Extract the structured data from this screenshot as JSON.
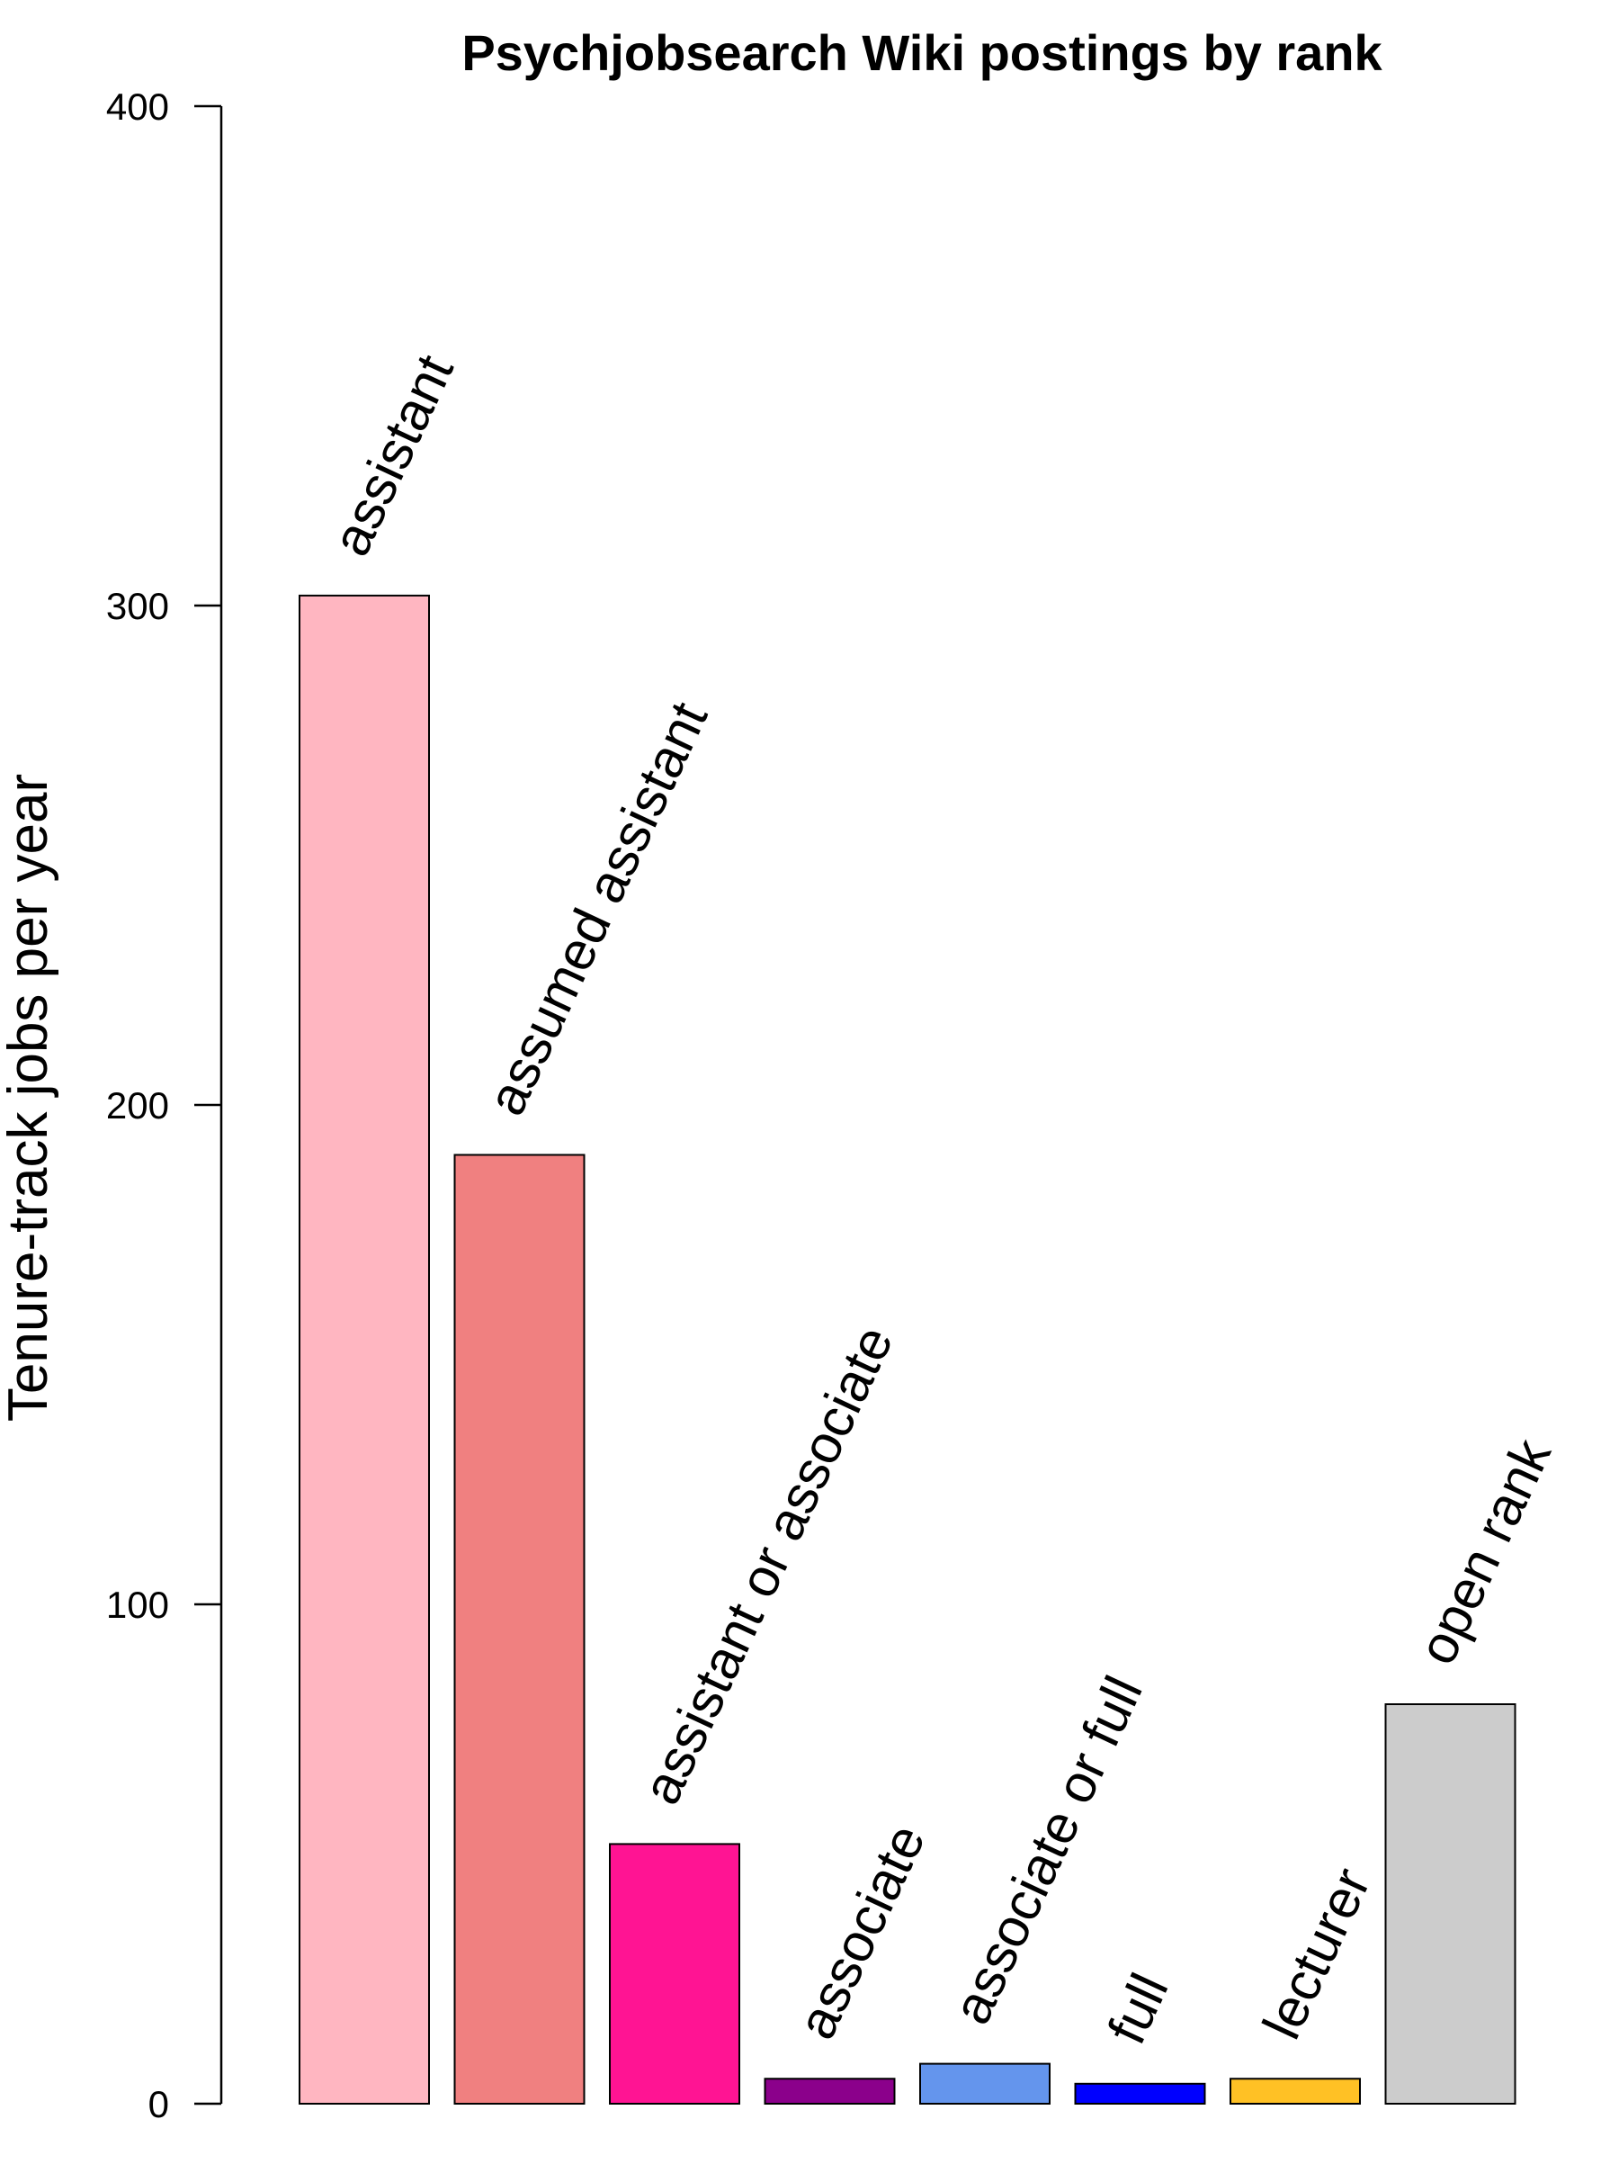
{
  "chart_data": {
    "type": "bar",
    "title": "Psychjobsearch Wiki postings by rank",
    "xlabel": "",
    "ylabel": "Tenure-track jobs per year",
    "ylim": [
      0,
      400
    ],
    "yticks": [
      0,
      100,
      200,
      300,
      400
    ],
    "categories": [
      "assistant",
      "assumed assistant",
      "assistant or associate",
      "associate",
      "associate or full",
      "full",
      "lecturer",
      "open rank"
    ],
    "values": [
      302,
      190,
      52,
      5,
      8,
      4,
      5,
      80
    ],
    "colors": [
      "#FFB6C1",
      "#F08080",
      "#FF1493",
      "#8B008B",
      "#6495ED",
      "#0000FF",
      "#FFC125",
      "#CCCCCC"
    ],
    "grid": false,
    "legend": "none"
  }
}
